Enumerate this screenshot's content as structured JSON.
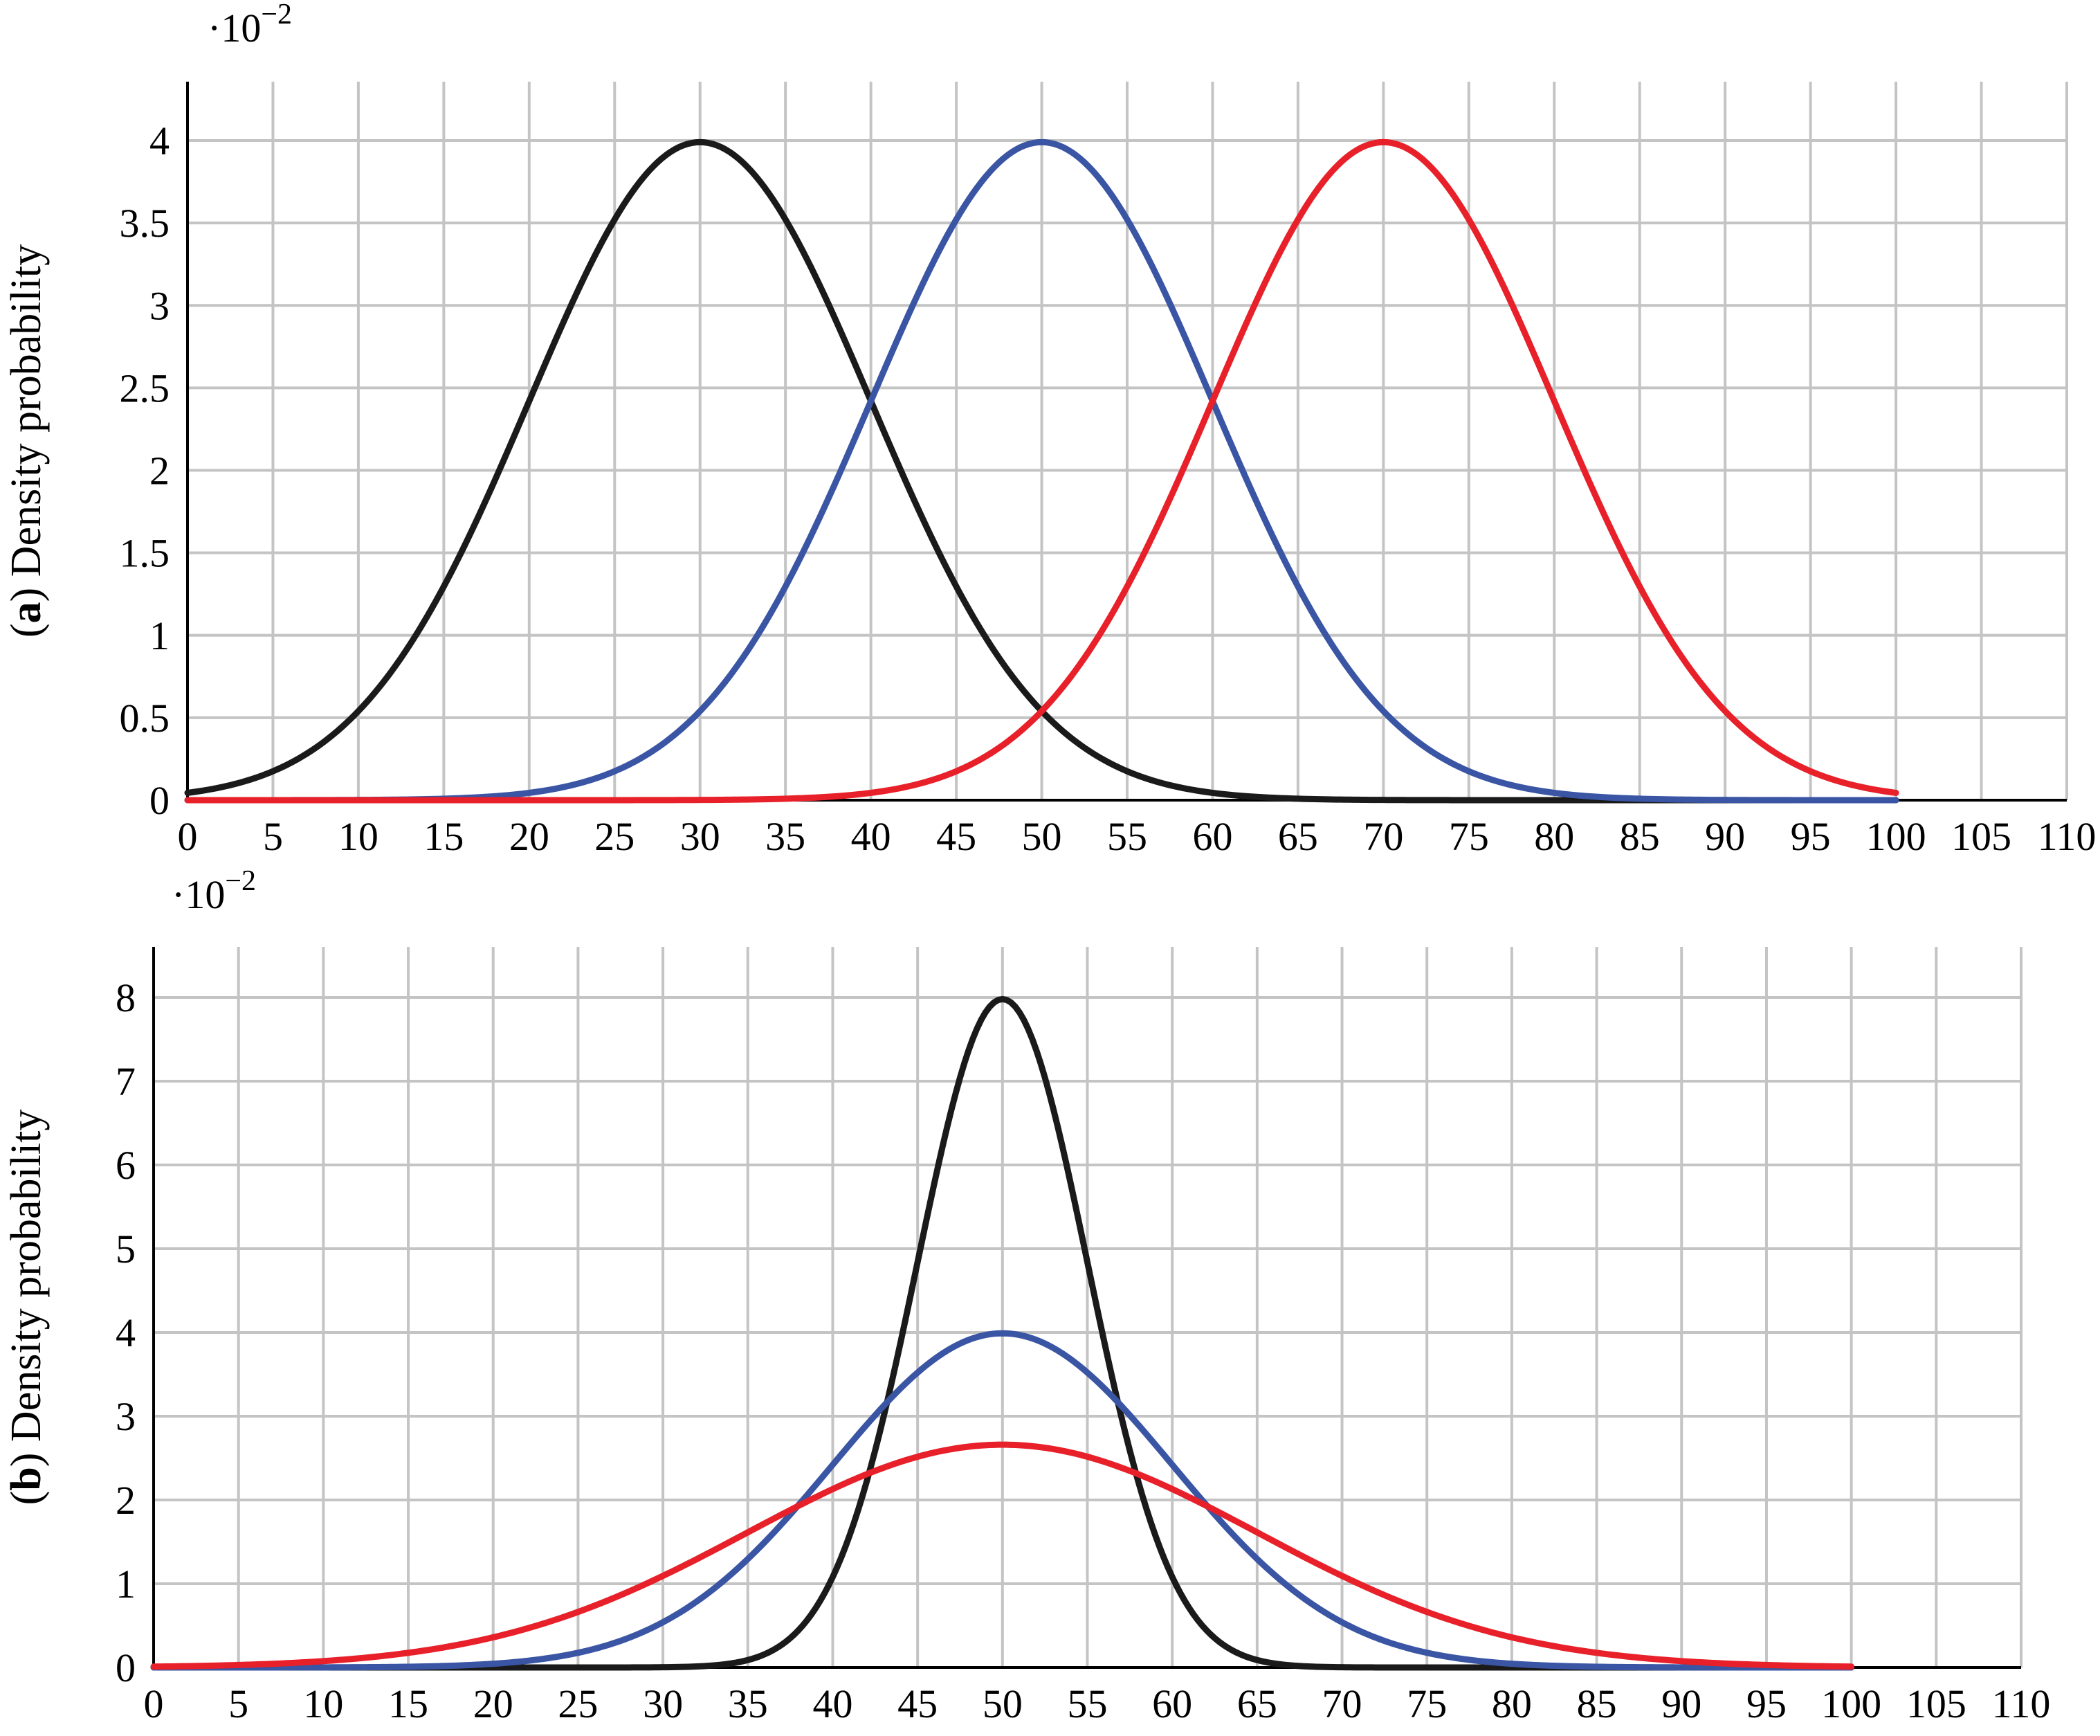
{
  "chart_data": [
    {
      "type": "line",
      "panel_label": "(a)",
      "ylabel": "Density probability",
      "y_multiplier": "·10",
      "y_multiplier_exp": "−2",
      "xlim": [
        0,
        110
      ],
      "ylim": [
        0,
        4.4
      ],
      "x_ticks": [
        0,
        5,
        10,
        15,
        20,
        25,
        30,
        35,
        40,
        45,
        50,
        55,
        60,
        65,
        70,
        75,
        80,
        85,
        90,
        95,
        100,
        105,
        110
      ],
      "y_ticks": [
        0,
        0.5,
        1,
        1.5,
        2,
        2.5,
        3,
        3.5,
        4
      ],
      "grid": true,
      "x_range": [
        0,
        100
      ],
      "series": [
        {
          "color": "#1a1a1a",
          "mean": 30,
          "sd": 10,
          "peak": 3.99
        },
        {
          "color": "#3a55a4",
          "mean": 50,
          "sd": 10,
          "peak": 3.99
        },
        {
          "color": "#e8202a",
          "mean": 70,
          "sd": 10,
          "peak": 3.99
        }
      ]
    },
    {
      "type": "line",
      "panel_label": "(b)",
      "ylabel": "Density probability",
      "y_multiplier": "·10",
      "y_multiplier_exp": "−2",
      "xlim": [
        0,
        110
      ],
      "ylim": [
        0,
        8.6
      ],
      "x_ticks": [
        0,
        5,
        10,
        15,
        20,
        25,
        30,
        35,
        40,
        45,
        50,
        55,
        60,
        65,
        70,
        75,
        80,
        85,
        90,
        95,
        100,
        105,
        110
      ],
      "y_ticks": [
        0,
        1,
        2,
        3,
        4,
        5,
        6,
        7,
        8
      ],
      "grid": true,
      "x_range": [
        0,
        100
      ],
      "series": [
        {
          "color": "#1a1a1a",
          "mean": 50,
          "sd": 5,
          "peak": 7.98
        },
        {
          "color": "#3a55a4",
          "mean": 50,
          "sd": 10,
          "peak": 3.99
        },
        {
          "color": "#e8202a",
          "mean": 50,
          "sd": 15,
          "peak": 2.66
        }
      ]
    }
  ]
}
